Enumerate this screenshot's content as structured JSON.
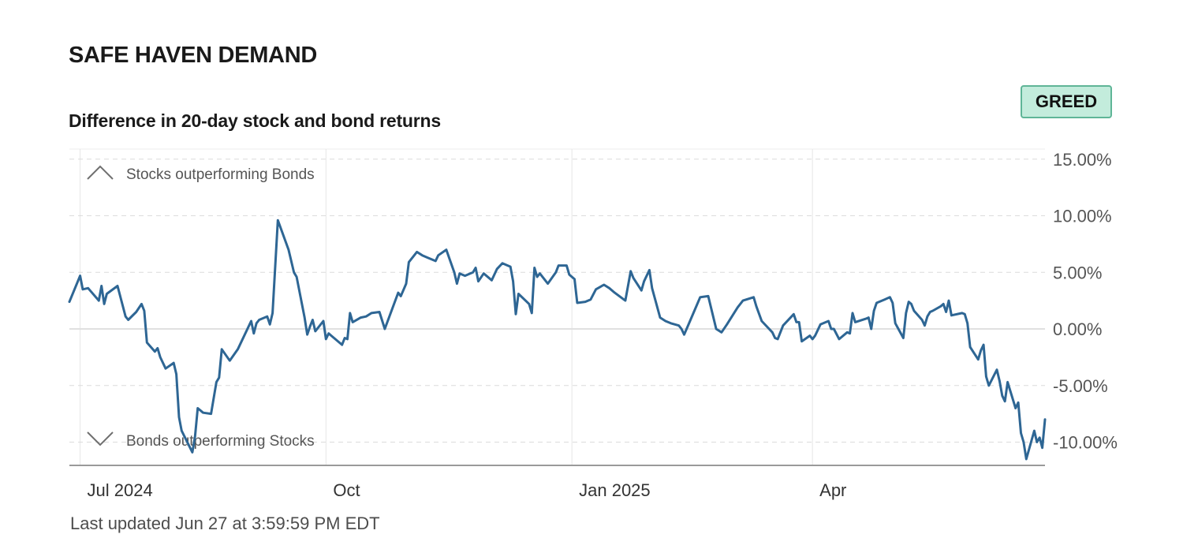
{
  "header": {
    "title": "SAFE HAVEN DEMAND",
    "subtitle": "Difference in 20-day stock and bond returns",
    "badge": "GREED",
    "updated": "Last updated Jun 27 at 3:59:59 PM EDT"
  },
  "colors": {
    "line": "#2e6694",
    "badge_fill": "#c3ecdc",
    "badge_border": "#5fb597"
  },
  "icons": {
    "up": "chevron-up-icon",
    "down": "chevron-down-icon"
  },
  "chart_data": {
    "type": "line",
    "title": "Difference in 20-day stock and bond returns",
    "annotations": {
      "top": "Stocks outperforming Bonds",
      "bottom": "Bonds outperforming Stocks"
    },
    "x_ticks": [
      {
        "label": "Jul 2024",
        "date": "2024-07-01"
      },
      {
        "label": "Oct",
        "date": "2024-10-01"
      },
      {
        "label": "Jan 2025",
        "date": "2025-01-01"
      },
      {
        "label": "Apr",
        "date": "2025-04-01"
      }
    ],
    "y_ticks": [
      {
        "label": "15.00%",
        "value": 15
      },
      {
        "label": "10.00%",
        "value": 10
      },
      {
        "label": "5.00%",
        "value": 5
      },
      {
        "label": "0.00%",
        "value": 0
      },
      {
        "label": "-5.00%",
        "value": -5
      },
      {
        "label": "-10.00%",
        "value": -10
      }
    ],
    "xlim": [
      "2024-06-27",
      "2025-06-27"
    ],
    "ylim": [
      -12,
      16
    ],
    "grid": true,
    "series": [
      {
        "values": [
          [
            "2024-06-27",
            2.4
          ],
          [
            "2024-07-01",
            4.7
          ],
          [
            "2024-07-02",
            3.5
          ],
          [
            "2024-07-04",
            3.6
          ],
          [
            "2024-07-08",
            2.5
          ],
          [
            "2024-07-09",
            3.8
          ],
          [
            "2024-07-10",
            2.2
          ],
          [
            "2024-07-11",
            3.1
          ],
          [
            "2024-07-15",
            3.8
          ],
          [
            "2024-07-18",
            1.1
          ],
          [
            "2024-07-19",
            0.8
          ],
          [
            "2024-07-22",
            1.5
          ],
          [
            "2024-07-24",
            2.2
          ],
          [
            "2024-07-25",
            1.6
          ],
          [
            "2024-07-26",
            -1.2
          ],
          [
            "2024-07-29",
            -2.0
          ],
          [
            "2024-07-30",
            -1.7
          ],
          [
            "2024-07-31",
            -2.5
          ],
          [
            "2024-08-02",
            -3.5
          ],
          [
            "2024-08-05",
            -3.0
          ],
          [
            "2024-08-06",
            -4.0
          ],
          [
            "2024-08-07",
            -7.8
          ],
          [
            "2024-08-08",
            -9.0
          ],
          [
            "2024-08-12",
            -10.9
          ],
          [
            "2024-08-13",
            -9.5
          ],
          [
            "2024-08-14",
            -7.0
          ],
          [
            "2024-08-16",
            -7.4
          ],
          [
            "2024-08-19",
            -7.5
          ],
          [
            "2024-08-21",
            -4.7
          ],
          [
            "2024-08-22",
            -4.3
          ],
          [
            "2024-08-23",
            -1.8
          ],
          [
            "2024-08-26",
            -2.8
          ],
          [
            "2024-08-29",
            -1.8
          ],
          [
            "2024-09-03",
            0.7
          ],
          [
            "2024-09-04",
            -0.4
          ],
          [
            "2024-09-05",
            0.5
          ],
          [
            "2024-09-06",
            0.8
          ],
          [
            "2024-09-09",
            1.1
          ],
          [
            "2024-09-10",
            0.4
          ],
          [
            "2024-09-11",
            1.4
          ],
          [
            "2024-09-13",
            9.6
          ],
          [
            "2024-09-17",
            7.0
          ],
          [
            "2024-09-19",
            5.0
          ],
          [
            "2024-09-20",
            4.6
          ],
          [
            "2024-09-23",
            1.0
          ],
          [
            "2024-09-24",
            -0.5
          ],
          [
            "2024-09-25",
            0.2
          ],
          [
            "2024-09-26",
            0.8
          ],
          [
            "2024-09-27",
            -0.2
          ],
          [
            "2024-09-30",
            0.7
          ],
          [
            "2024-10-01",
            -0.9
          ],
          [
            "2024-10-02",
            -0.4
          ],
          [
            "2024-10-03",
            -0.6
          ],
          [
            "2024-10-07",
            -1.4
          ],
          [
            "2024-10-08",
            -0.8
          ],
          [
            "2024-10-09",
            -0.9
          ],
          [
            "2024-10-10",
            1.4
          ],
          [
            "2024-10-11",
            0.6
          ],
          [
            "2024-10-14",
            1.0
          ],
          [
            "2024-10-16",
            1.1
          ],
          [
            "2024-10-18",
            1.4
          ],
          [
            "2024-10-21",
            1.5
          ],
          [
            "2024-10-23",
            0.0
          ],
          [
            "2024-10-28",
            3.2
          ],
          [
            "2024-10-29",
            2.9
          ],
          [
            "2024-10-31",
            4.0
          ],
          [
            "2024-11-01",
            5.9
          ],
          [
            "2024-11-04",
            6.8
          ],
          [
            "2024-11-06",
            6.5
          ],
          [
            "2024-11-08",
            6.3
          ],
          [
            "2024-11-11",
            6.0
          ],
          [
            "2024-11-12",
            6.5
          ],
          [
            "2024-11-15",
            7.0
          ],
          [
            "2024-11-18",
            5.0
          ],
          [
            "2024-11-19",
            4.0
          ],
          [
            "2024-11-20",
            4.9
          ],
          [
            "2024-11-22",
            4.7
          ],
          [
            "2024-11-25",
            5.0
          ],
          [
            "2024-11-26",
            5.4
          ],
          [
            "2024-11-27",
            4.2
          ],
          [
            "2024-11-29",
            4.9
          ],
          [
            "2024-12-02",
            4.3
          ],
          [
            "2024-12-04",
            5.3
          ],
          [
            "2024-12-06",
            5.8
          ],
          [
            "2024-12-09",
            5.5
          ],
          [
            "2024-12-10",
            4.2
          ],
          [
            "2024-12-11",
            1.3
          ],
          [
            "2024-12-12",
            3.1
          ],
          [
            "2024-12-16",
            2.2
          ],
          [
            "2024-12-17",
            1.4
          ],
          [
            "2024-12-18",
            5.4
          ],
          [
            "2024-12-19",
            4.6
          ],
          [
            "2024-12-20",
            4.9
          ],
          [
            "2024-12-23",
            4.0
          ],
          [
            "2024-12-26",
            5.0
          ],
          [
            "2024-12-27",
            5.6
          ],
          [
            "2024-12-30",
            5.6
          ],
          [
            "2024-12-31",
            4.8
          ],
          [
            "2025-01-02",
            4.4
          ],
          [
            "2025-01-03",
            2.3
          ],
          [
            "2025-01-06",
            2.4
          ],
          [
            "2025-01-08",
            2.6
          ],
          [
            "2025-01-10",
            3.5
          ],
          [
            "2025-01-13",
            3.9
          ],
          [
            "2025-01-15",
            3.6
          ],
          [
            "2025-01-17",
            3.2
          ],
          [
            "2025-01-21",
            2.5
          ],
          [
            "2025-01-23",
            5.1
          ],
          [
            "2025-01-24",
            4.5
          ],
          [
            "2025-01-27",
            3.4
          ],
          [
            "2025-01-28",
            4.2
          ],
          [
            "2025-01-30",
            5.2
          ],
          [
            "2025-01-31",
            3.6
          ],
          [
            "2025-02-03",
            1.0
          ],
          [
            "2025-02-05",
            0.7
          ],
          [
            "2025-02-07",
            0.5
          ],
          [
            "2025-02-10",
            0.3
          ],
          [
            "2025-02-11",
            0.0
          ],
          [
            "2025-02-12",
            -0.5
          ],
          [
            "2025-02-14",
            0.6
          ],
          [
            "2025-02-18",
            2.8
          ],
          [
            "2025-02-21",
            2.9
          ],
          [
            "2025-02-24",
            0.0
          ],
          [
            "2025-02-26",
            -0.3
          ],
          [
            "2025-02-28",
            0.4
          ],
          [
            "2025-03-04",
            1.9
          ],
          [
            "2025-03-06",
            2.5
          ],
          [
            "2025-03-10",
            2.8
          ],
          [
            "2025-03-11",
            2.0
          ],
          [
            "2025-03-13",
            0.7
          ],
          [
            "2025-03-17",
            -0.3
          ],
          [
            "2025-03-18",
            -0.8
          ],
          [
            "2025-03-19",
            -0.9
          ],
          [
            "2025-03-21",
            0.3
          ],
          [
            "2025-03-25",
            1.3
          ],
          [
            "2025-03-26",
            0.6
          ],
          [
            "2025-03-27",
            0.6
          ],
          [
            "2025-03-28",
            -1.1
          ],
          [
            "2025-03-31",
            -0.6
          ],
          [
            "2025-04-01",
            -0.9
          ],
          [
            "2025-04-02",
            -0.6
          ],
          [
            "2025-04-04",
            0.4
          ],
          [
            "2025-04-07",
            0.7
          ],
          [
            "2025-04-08",
            0.0
          ],
          [
            "2025-04-09",
            0.0
          ],
          [
            "2025-04-11",
            -0.9
          ],
          [
            "2025-04-14",
            -0.3
          ],
          [
            "2025-04-15",
            -0.4
          ],
          [
            "2025-04-16",
            1.4
          ],
          [
            "2025-04-17",
            0.6
          ],
          [
            "2025-04-21",
            0.9
          ],
          [
            "2025-04-22",
            1.0
          ],
          [
            "2025-04-23",
            0.0
          ],
          [
            "2025-04-24",
            1.6
          ],
          [
            "2025-04-25",
            2.3
          ],
          [
            "2025-04-28",
            2.6
          ],
          [
            "2025-04-29",
            2.7
          ],
          [
            "2025-04-30",
            2.8
          ],
          [
            "2025-05-01",
            2.3
          ],
          [
            "2025-05-02",
            0.5
          ],
          [
            "2025-05-05",
            -0.8
          ],
          [
            "2025-05-06",
            1.4
          ],
          [
            "2025-05-07",
            2.4
          ],
          [
            "2025-05-08",
            2.2
          ],
          [
            "2025-05-09",
            1.6
          ],
          [
            "2025-05-12",
            0.8
          ],
          [
            "2025-05-13",
            0.3
          ],
          [
            "2025-05-14",
            1.1
          ],
          [
            "2025-05-15",
            1.5
          ],
          [
            "2025-05-16",
            1.6
          ],
          [
            "2025-05-19",
            2.0
          ],
          [
            "2025-05-20",
            2.2
          ],
          [
            "2025-05-21",
            1.5
          ],
          [
            "2025-05-22",
            2.5
          ],
          [
            "2025-05-23",
            1.2
          ],
          [
            "2025-05-27",
            1.4
          ],
          [
            "2025-05-28",
            1.3
          ],
          [
            "2025-05-29",
            0.5
          ],
          [
            "2025-05-30",
            -1.6
          ],
          [
            "2025-06-02",
            -2.7
          ],
          [
            "2025-06-03",
            -1.9
          ],
          [
            "2025-06-04",
            -1.4
          ],
          [
            "2025-06-05",
            -4.2
          ],
          [
            "2025-06-06",
            -5.0
          ],
          [
            "2025-06-09",
            -3.6
          ],
          [
            "2025-06-10",
            -4.6
          ],
          [
            "2025-06-11",
            -5.9
          ],
          [
            "2025-06-12",
            -6.4
          ],
          [
            "2025-06-13",
            -4.7
          ],
          [
            "2025-06-16",
            -7.0
          ],
          [
            "2025-06-17",
            -6.5
          ],
          [
            "2025-06-18",
            -9.2
          ],
          [
            "2025-06-19",
            -10.0
          ],
          [
            "2025-06-20",
            -11.5
          ],
          [
            "2025-06-23",
            -9.0
          ],
          [
            "2025-06-24",
            -10.0
          ],
          [
            "2025-06-25",
            -9.6
          ],
          [
            "2025-06-26",
            -10.5
          ],
          [
            "2025-06-27",
            -8.0
          ]
        ]
      }
    ]
  }
}
